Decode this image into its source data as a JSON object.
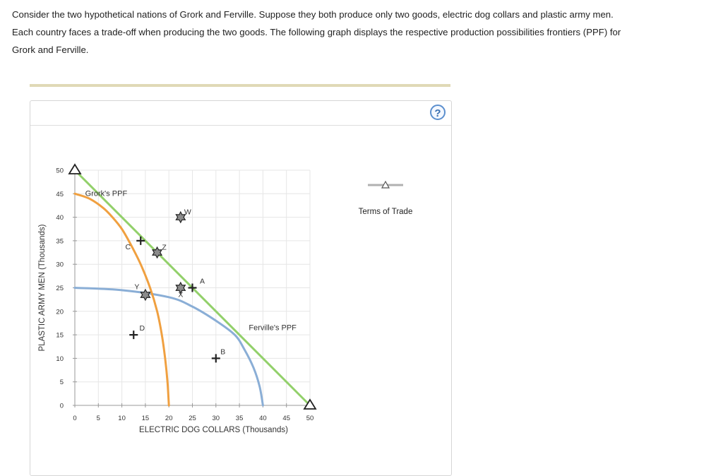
{
  "intro": {
    "line1": "Consider the two hypothetical nations of Grork and Ferville. Suppose they both produce only two goods, electric dog collars and plastic army men.",
    "line2": "Each country faces a trade-off when producing the two goods. The following graph displays the respective production possibilities frontiers (PPF) for",
    "line3": "Grork and Ferville."
  },
  "help": {
    "label": "?"
  },
  "colors": {
    "grork": "#f0a040",
    "ferville": "#8aaed6",
    "trade": "#92d06a",
    "grid": "#e6e6e6",
    "marker_gray": "#8c8c8c"
  },
  "chart_data": {
    "type": "line",
    "xlabel": "ELECTRIC DOG COLLARS (Thousands)",
    "ylabel": "PLASTIC ARMY MEN (Thousands)",
    "xlim": [
      0,
      50
    ],
    "ylim": [
      0,
      50
    ],
    "xticks": [
      0,
      5,
      10,
      15,
      20,
      25,
      30,
      35,
      40,
      45,
      50
    ],
    "yticks": [
      0,
      5,
      10,
      15,
      20,
      25,
      30,
      35,
      40,
      45,
      50
    ],
    "legend": {
      "label": "Terms of Trade",
      "placement": "right"
    },
    "series": [
      {
        "name": "Grork's PPF",
        "label": "Grork's PPF",
        "points": [
          [
            0,
            45
          ],
          [
            3,
            44
          ],
          [
            6,
            42
          ],
          [
            8,
            40
          ],
          [
            10,
            37.5
          ],
          [
            12,
            34
          ],
          [
            14,
            30
          ],
          [
            16,
            25
          ],
          [
            17.5,
            20
          ],
          [
            18.5,
            15
          ],
          [
            19.2,
            10
          ],
          [
            19.7,
            5
          ],
          [
            20,
            0
          ]
        ]
      },
      {
        "name": "Ferville's PPF",
        "label": "Ferville's PPF",
        "points": [
          [
            0,
            25
          ],
          [
            10,
            24.5
          ],
          [
            20,
            23
          ],
          [
            25,
            21
          ],
          [
            30,
            18
          ],
          [
            34,
            15
          ],
          [
            36,
            12
          ],
          [
            38,
            8
          ],
          [
            39.3,
            4
          ],
          [
            40,
            0
          ]
        ]
      },
      {
        "name": "Terms of Trade",
        "label": "",
        "points": [
          [
            0,
            50
          ],
          [
            50,
            0
          ]
        ]
      }
    ],
    "endpoints": [
      [
        0,
        50
      ],
      [
        50,
        0
      ]
    ],
    "points": [
      {
        "label": "C",
        "x": 14,
        "y": 35,
        "marker": "plus"
      },
      {
        "label": "Z",
        "x": 17.5,
        "y": 32.5,
        "marker": "star"
      },
      {
        "label": "W",
        "x": 22.5,
        "y": 40,
        "marker": "star"
      },
      {
        "label": "A",
        "x": 25,
        "y": 25,
        "marker": "plus"
      },
      {
        "label": "X",
        "x": 22.5,
        "y": 25,
        "marker": "star"
      },
      {
        "label": "Y",
        "x": 15,
        "y": 23.5,
        "marker": "star"
      },
      {
        "label": "D",
        "x": 12.5,
        "y": 15,
        "marker": "plus"
      },
      {
        "label": "B",
        "x": 30,
        "y": 10,
        "marker": "plus"
      }
    ]
  }
}
